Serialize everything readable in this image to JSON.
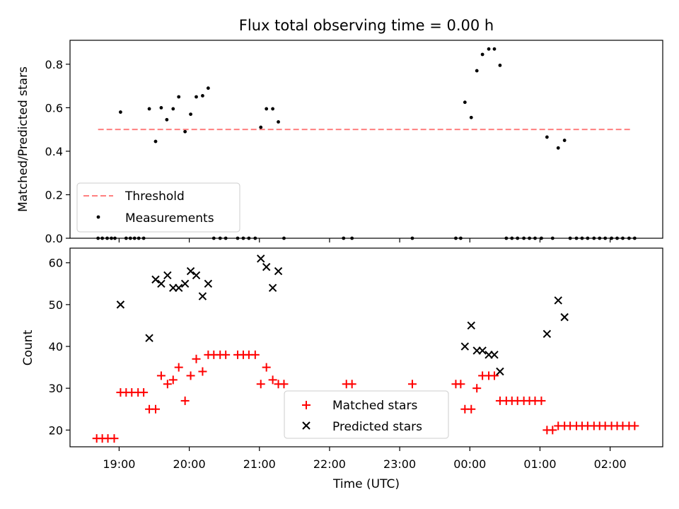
{
  "chart_data": [
    {
      "type": "scatter",
      "title": "Flux total observing time = 0.00 h",
      "xlabel": "",
      "ylabel": "Matched/Predicted stars",
      "ylim": [
        0,
        0.91
      ],
      "yticks": [
        0.0,
        0.2,
        0.4,
        0.6,
        0.8
      ],
      "ytick_labels": [
        "0.0",
        "0.2",
        "0.4",
        "0.6",
        "0.8"
      ],
      "xlim": [
        18.3,
        26.75
      ],
      "xticks": [
        19,
        20,
        21,
        22,
        23,
        24,
        25,
        26
      ],
      "grid": false,
      "legend": {
        "placement": "lower-left",
        "entries": [
          "Threshold",
          "Measurements"
        ]
      },
      "series": [
        {
          "name": "Threshold",
          "style": "dashed-line",
          "color": "#ff7f7f",
          "x": [
            18.7,
            26.3
          ],
          "y": [
            0.5,
            0.5
          ]
        },
        {
          "name": "Measurements",
          "style": "dot",
          "color": "#000000",
          "x": [
            18.7,
            18.76,
            18.83,
            18.89,
            18.94,
            19.02,
            19.1,
            19.16,
            19.22,
            19.28,
            19.35,
            19.43,
            19.52,
            19.6,
            19.68,
            19.77,
            19.85,
            19.94,
            20.02,
            20.1,
            20.19,
            20.27,
            20.35,
            20.44,
            20.52,
            20.69,
            20.77,
            20.85,
            20.94,
            21.02,
            21.1,
            21.19,
            21.27,
            21.35,
            22.2,
            22.32,
            23.18,
            23.8,
            23.87,
            23.93,
            24.02,
            24.1,
            24.18,
            24.27,
            24.35,
            24.43,
            24.52,
            24.6,
            24.68,
            24.77,
            24.85,
            24.93,
            25.02,
            25.1,
            25.18,
            25.26,
            25.35,
            25.43,
            25.52,
            25.6,
            25.68,
            25.77,
            25.85,
            25.93,
            26.02,
            26.1,
            26.18,
            26.27,
            26.35
          ],
          "y": [
            0,
            0,
            0,
            0,
            0,
            0.58,
            0,
            0,
            0,
            0,
            0,
            0.595,
            0.445,
            0.6,
            0.545,
            0.595,
            0.65,
            0.49,
            0.57,
            0.65,
            0.655,
            0.69,
            0,
            0,
            0,
            0,
            0,
            0,
            0,
            0.51,
            0.595,
            0.595,
            0.535,
            0,
            0,
            0,
            0,
            0,
            0,
            0.625,
            0.555,
            0.77,
            0.845,
            0.87,
            0.87,
            0.795,
            0,
            0,
            0,
            0,
            0,
            0,
            0,
            0.465,
            0,
            0.415,
            0.45,
            0,
            0,
            0,
            0,
            0,
            0,
            0,
            0,
            0,
            0,
            0,
            0
          ]
        }
      ]
    },
    {
      "type": "scatter",
      "title": "",
      "xlabel": "Time (UTC)",
      "ylabel": "Count",
      "ylim": [
        16,
        63.5
      ],
      "yticks": [
        20,
        30,
        40,
        50,
        60
      ],
      "ytick_labels": [
        "20",
        "30",
        "40",
        "50",
        "60"
      ],
      "xlim": [
        18.3,
        26.75
      ],
      "xticks": [
        19,
        20,
        21,
        22,
        23,
        24,
        25,
        26
      ],
      "xtick_labels": [
        "19:00",
        "20:00",
        "21:00",
        "22:00",
        "23:00",
        "00:00",
        "01:00",
        "02:00"
      ],
      "grid": false,
      "legend": {
        "placement": "bottom-center",
        "entries": [
          "Matched stars",
          "Predicted stars"
        ]
      },
      "series": [
        {
          "name": "Matched stars",
          "style": "plus",
          "color": "#ff0000",
          "x": [
            18.68,
            18.76,
            18.84,
            18.93,
            19.02,
            19.1,
            19.18,
            19.27,
            19.35,
            19.43,
            19.52,
            19.6,
            19.69,
            19.77,
            19.85,
            19.94,
            20.02,
            20.1,
            20.19,
            20.27,
            20.35,
            20.44,
            20.52,
            20.69,
            20.77,
            20.85,
            20.94,
            21.02,
            21.1,
            21.19,
            21.27,
            21.35,
            22.24,
            22.32,
            23.18,
            23.8,
            23.87,
            23.93,
            24.02,
            24.1,
            24.18,
            24.27,
            24.35,
            24.43,
            24.52,
            24.6,
            24.68,
            24.77,
            24.85,
            24.93,
            25.02,
            25.1,
            25.18,
            25.26,
            25.35,
            25.43,
            25.52,
            25.6,
            25.68,
            25.77,
            25.85,
            25.93,
            26.02,
            26.1,
            26.18,
            26.27,
            26.35
          ],
          "y": [
            18,
            18,
            18,
            18,
            29,
            29,
            29,
            29,
            29,
            25,
            25,
            33,
            31,
            32,
            35,
            27,
            33,
            37,
            34,
            38,
            38,
            38,
            38,
            38,
            38,
            38,
            38,
            31,
            35,
            32,
            31,
            31,
            31,
            31,
            31,
            31,
            31,
            25,
            25,
            30,
            33,
            33,
            33,
            27,
            27,
            27,
            27,
            27,
            27,
            27,
            27,
            20,
            20,
            21,
            21,
            21,
            21,
            21,
            21,
            21,
            21,
            21,
            21,
            21,
            21,
            21,
            21
          ]
        },
        {
          "name": "Predicted stars",
          "style": "x",
          "color": "#000000",
          "x": [
            19.02,
            19.43,
            19.52,
            19.6,
            19.69,
            19.77,
            19.85,
            19.94,
            20.02,
            20.1,
            20.19,
            20.27,
            21.02,
            21.1,
            21.19,
            21.27,
            23.93,
            24.02,
            24.1,
            24.18,
            24.27,
            24.35,
            24.43,
            25.1,
            25.26,
            25.35
          ],
          "y": [
            50,
            42,
            56,
            55,
            57,
            54,
            54,
            55,
            58,
            57,
            52,
            55,
            61,
            59,
            54,
            58,
            40,
            45,
            39,
            39,
            38,
            38,
            34,
            43,
            51,
            47
          ]
        }
      ]
    }
  ]
}
